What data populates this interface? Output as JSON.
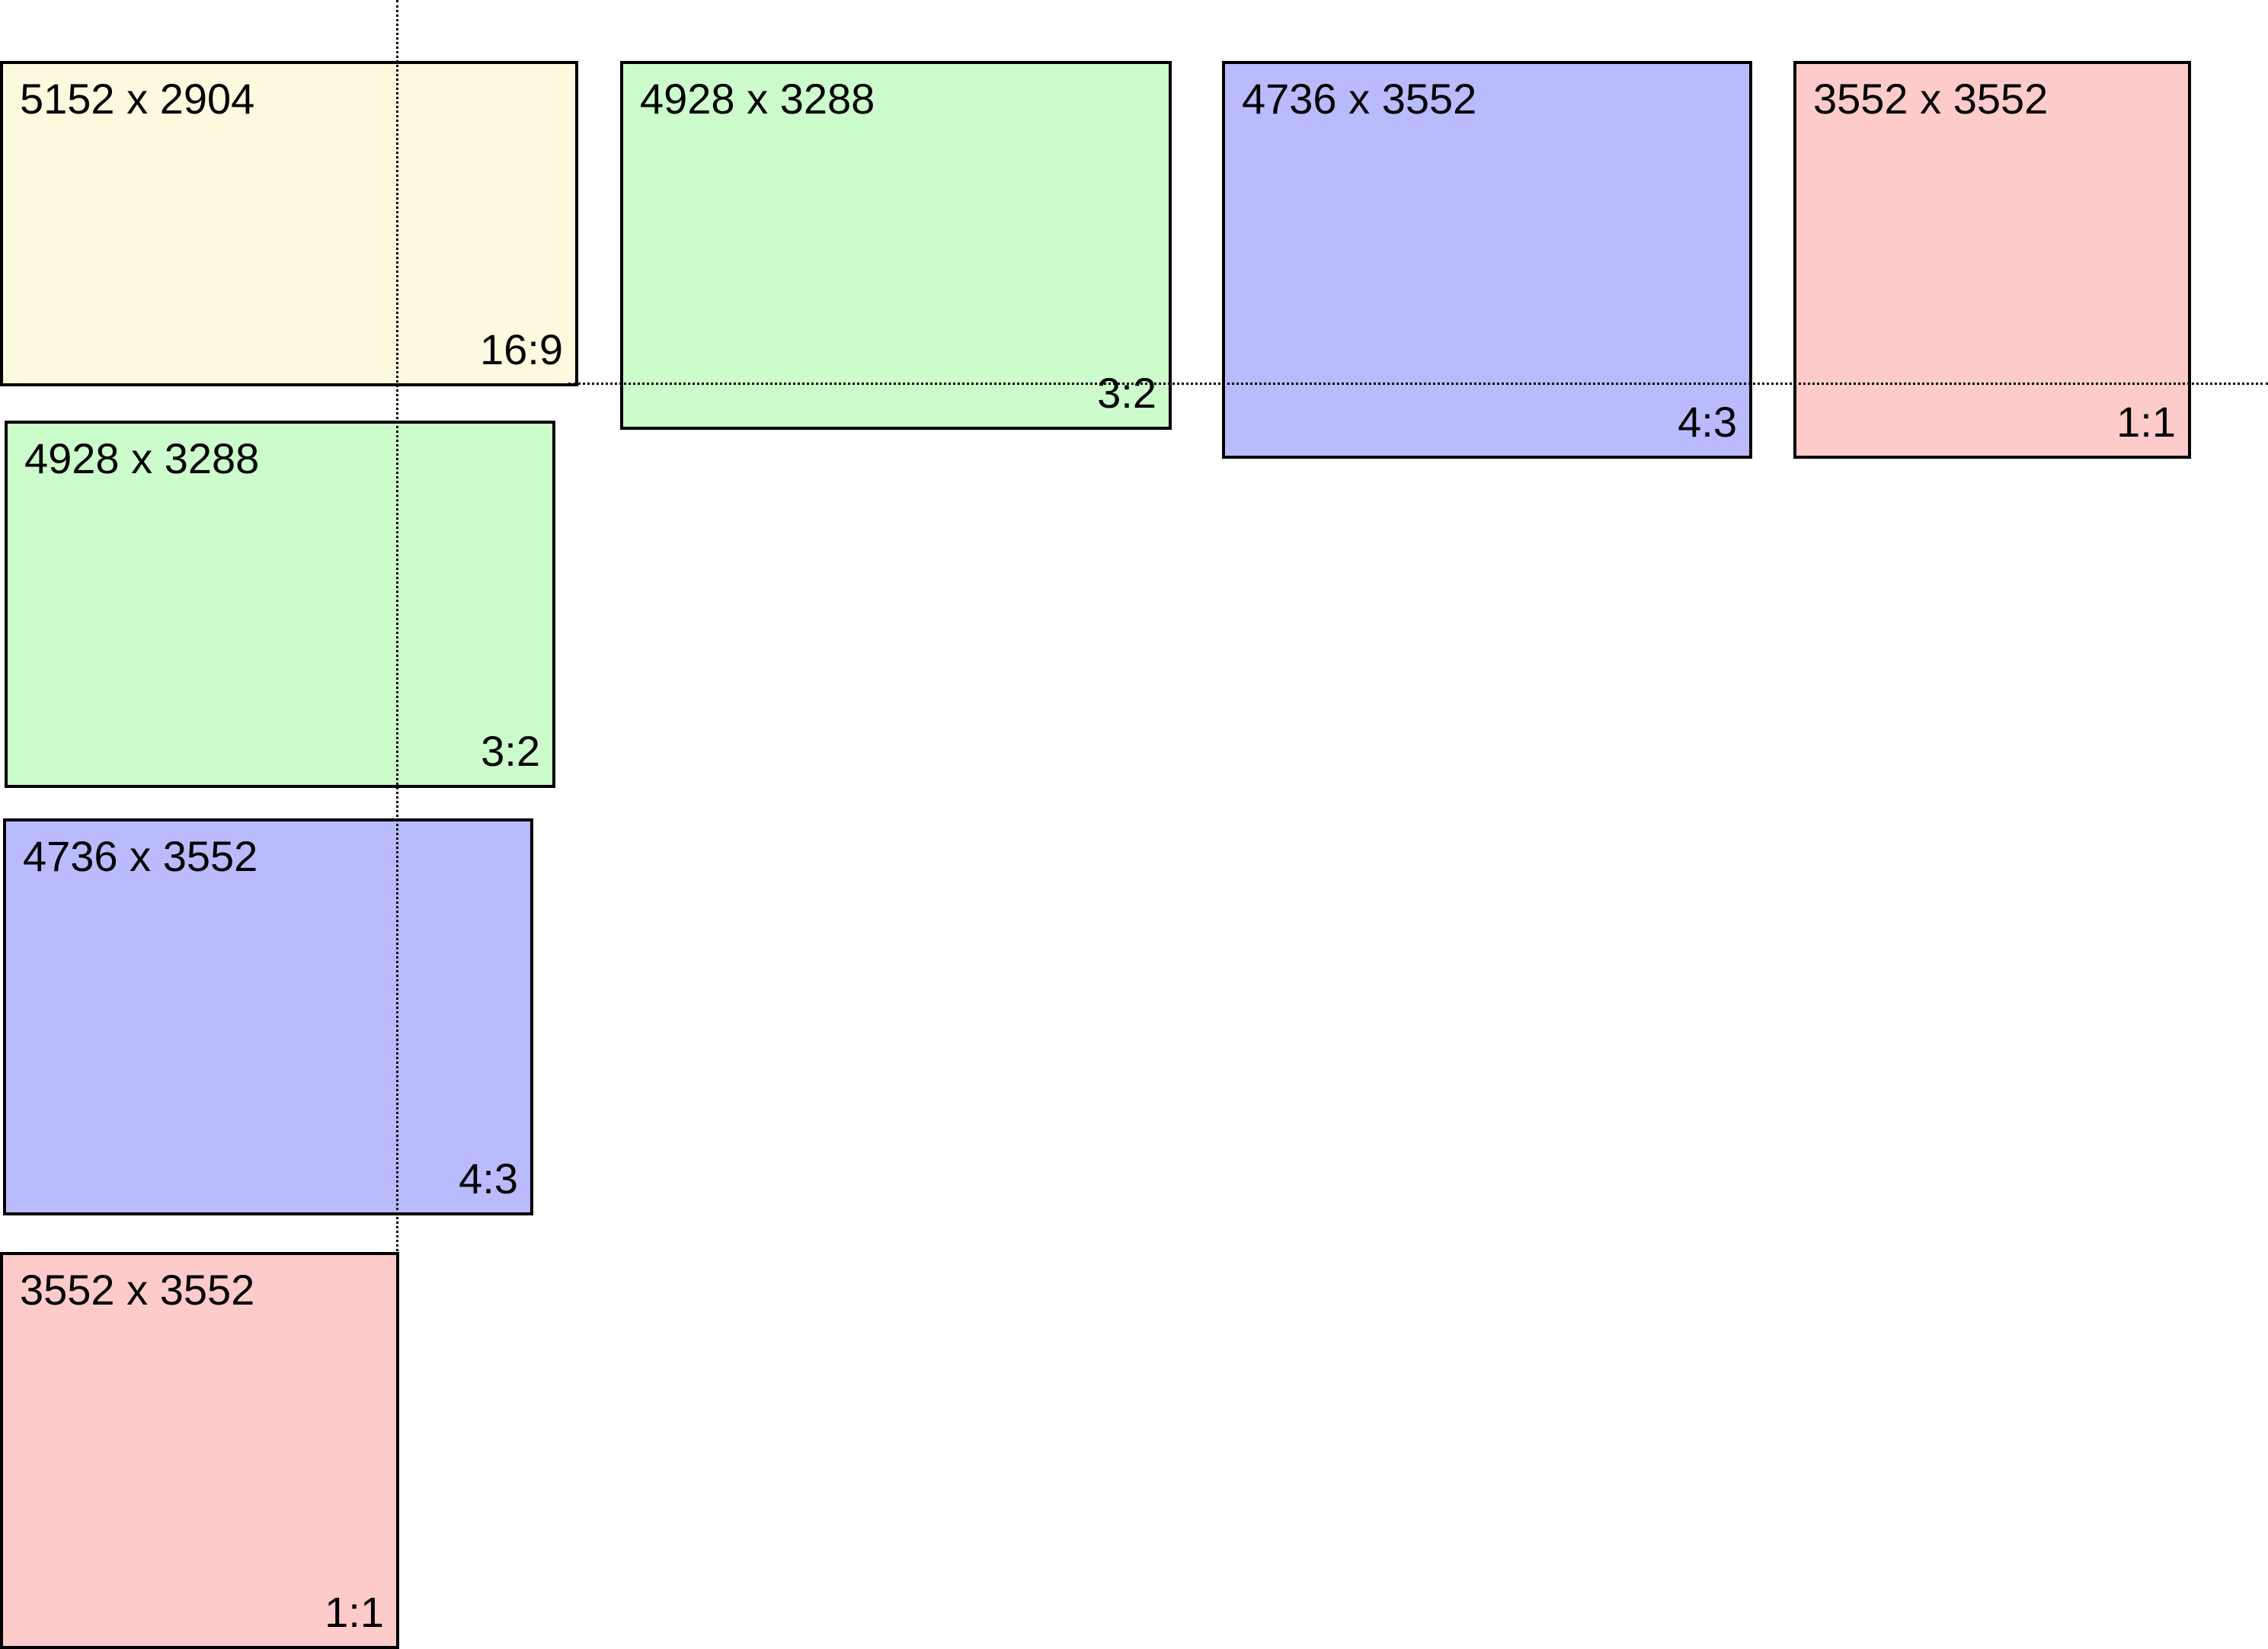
{
  "colors": {
    "ratio_16_9": "#fdf9de",
    "ratio_3_2": "#ccfccc",
    "ratio_4_3": "#b9bbfc",
    "ratio_1_1": "#fccbca",
    "border": "#000000",
    "guide": "#000000"
  },
  "boxes": {
    "top_row": [
      {
        "dims": "5152 x 2904",
        "ratio": "16:9"
      },
      {
        "dims": "4928 x 3288",
        "ratio": "3:2"
      },
      {
        "dims": "4736 x 3552",
        "ratio": "4:3"
      },
      {
        "dims": "3552 x 3552",
        "ratio": "1:1"
      }
    ],
    "left_column": [
      {
        "dims": "4928 x 3288",
        "ratio": "3:2"
      },
      {
        "dims": "4736 x 3552",
        "ratio": "4:3"
      },
      {
        "dims": "3552 x 3552",
        "ratio": "1:1"
      }
    ]
  }
}
